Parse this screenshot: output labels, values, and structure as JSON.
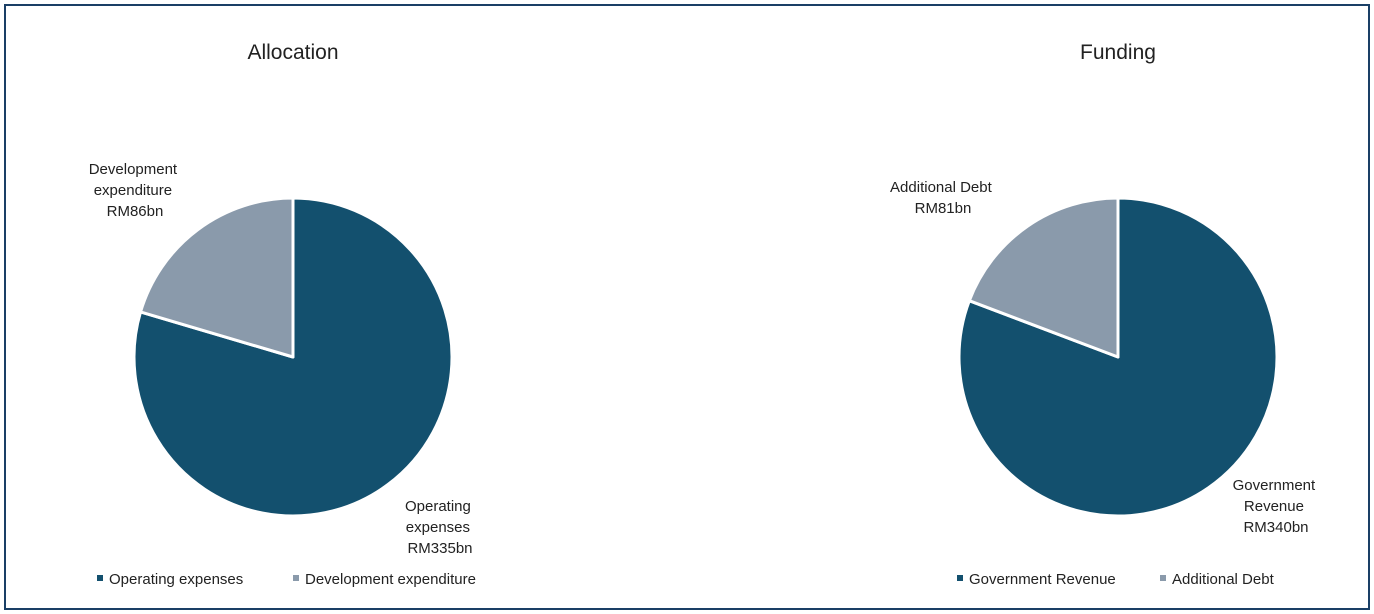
{
  "chart_data": [
    {
      "type": "pie",
      "title": "Allocation",
      "categories": [
        "Operating expenses",
        "Development expenditure"
      ],
      "values": [
        335,
        86
      ],
      "data_labels": [
        [
          "Operating",
          "expenses",
          "RM335bn"
        ],
        [
          "Development",
          "expenditure",
          "RM86bn"
        ]
      ],
      "legend": {
        "position": "bottom",
        "entries": [
          "Operating expenses",
          "Development expenditure"
        ]
      },
      "colors": [
        "#13506e",
        "#8a9aab"
      ]
    },
    {
      "type": "pie",
      "title": "Funding",
      "categories": [
        "Government Revenue",
        "Additional Debt"
      ],
      "values": [
        340,
        81
      ],
      "data_labels": [
        [
          "Government",
          "Revenue",
          "RM340bn"
        ],
        [
          "Additional Debt",
          "RM81bn"
        ]
      ],
      "legend": {
        "position": "bottom",
        "entries": [
          "Government Revenue",
          "Additional Debt"
        ]
      },
      "colors": [
        "#13506e",
        "#8a9aab"
      ]
    }
  ]
}
